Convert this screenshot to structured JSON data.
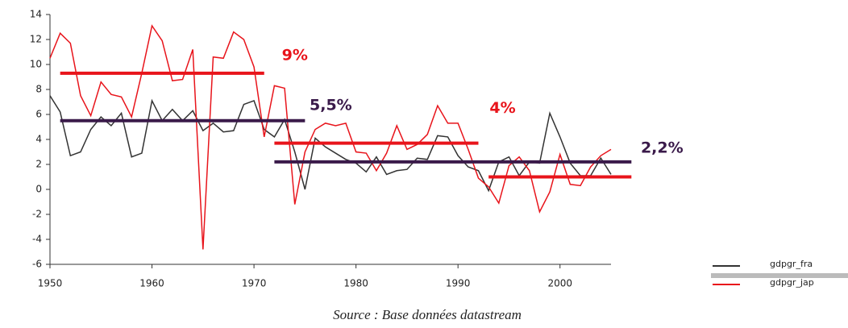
{
  "chart_data": {
    "type": "line",
    "x": [
      1950,
      1951,
      1952,
      1953,
      1954,
      1955,
      1956,
      1957,
      1958,
      1959,
      1960,
      1961,
      1962,
      1963,
      1964,
      1965,
      1966,
      1967,
      1968,
      1969,
      1970,
      1971,
      1972,
      1973,
      1974,
      1975,
      1976,
      1977,
      1978,
      1979,
      1980,
      1981,
      1982,
      1983,
      1984,
      1985,
      1986,
      1987,
      1988,
      1989,
      1990,
      1991,
      1992,
      1993,
      1994,
      1995,
      1996,
      1997,
      1998,
      1999,
      2000,
      2001,
      2002,
      2003,
      2004,
      2005
    ],
    "series": [
      {
        "name": "gdpgr_fra",
        "color": "#333333",
        "values": [
          7.5,
          6.2,
          2.7,
          3.0,
          4.8,
          5.8,
          5.1,
          6.1,
          2.6,
          2.9,
          7.1,
          5.5,
          6.4,
          5.5,
          6.3,
          4.7,
          5.3,
          4.6,
          4.7,
          6.8,
          7.1,
          4.8,
          4.2,
          5.6,
          3.0,
          0.0,
          4.1,
          3.4,
          2.9,
          2.4,
          2.1,
          1.4,
          2.6,
          1.2,
          1.5,
          1.6,
          2.5,
          2.4,
          4.3,
          4.2,
          2.7,
          1.8,
          1.5,
          -0.1,
          2.2,
          2.6,
          1.1,
          2.2,
          2.1,
          6.1,
          4.2,
          2.1,
          1.1,
          1.1,
          2.5,
          1.2
        ]
      },
      {
        "name": "gdpgr_jap",
        "color": "#e8141b",
        "values": [
          10.5,
          12.5,
          11.7,
          7.5,
          5.9,
          8.6,
          7.6,
          7.4,
          5.8,
          9.3,
          13.1,
          11.9,
          8.7,
          8.8,
          11.2,
          -4.8,
          10.6,
          10.5,
          12.6,
          12.0,
          9.8,
          4.2,
          8.3,
          8.1,
          -1.2,
          3.0,
          4.8,
          5.3,
          5.1,
          5.3,
          3.0,
          2.9,
          1.5,
          2.9,
          5.1,
          3.2,
          3.6,
          4.4,
          6.7,
          5.3,
          5.3,
          3.2,
          0.9,
          0.2,
          -1.1,
          1.9,
          2.6,
          1.5,
          -1.8,
          -0.2,
          2.8,
          0.4,
          0.3,
          1.8,
          2.7,
          3.2
        ]
      }
    ],
    "averages": [
      {
        "start": 1951,
        "end": 1971,
        "value": 9.3,
        "label": "9%",
        "color": "#e8141b"
      },
      {
        "start": 1951,
        "end": 1975,
        "value": 5.5,
        "label": "5,5%",
        "color": "#3a1a4a"
      },
      {
        "start": 1972,
        "end": 1992,
        "value": 3.7,
        "label": "4%",
        "color": "#e8141b"
      },
      {
        "start": 1972,
        "end": 2007,
        "value": 2.2,
        "label": "2,2%",
        "color": "#3a1a4a"
      },
      {
        "start": 1993,
        "end": 2007,
        "value": 1.0,
        "color": "#e8141b"
      }
    ],
    "xlim": [
      1950,
      2005
    ],
    "xticks": [
      1950,
      1960,
      1970,
      1980,
      1990,
      2000
    ],
    "ylim": [
      -6,
      14
    ],
    "yticks": [
      -6,
      -4,
      -2,
      0,
      2,
      4,
      6,
      8,
      10,
      12,
      14
    ],
    "source": "Source : Base données datastream"
  }
}
